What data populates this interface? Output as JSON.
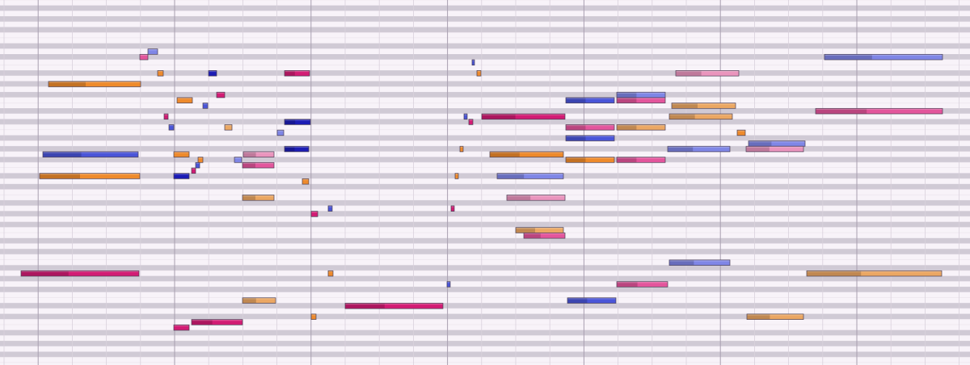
{
  "piano_roll": {
    "palette": [
      "#ee8a2c",
      "#e3559c",
      "#4a55d8",
      "#7f86e6",
      "#ea94bd",
      "#eba763",
      "#1c1cb4",
      "#d21c74"
    ],
    "notes": [
      [
        183,
        195,
        9,
        3
      ],
      [
        173,
        183,
        10,
        1
      ],
      [
        195,
        202,
        13,
        0
      ],
      [
        258,
        268,
        13,
        6
      ],
      [
        352,
        383,
        13,
        7
      ],
      [
        60,
        174,
        15,
        0
      ],
      [
        584,
        587,
        11,
        2
      ],
      [
        590,
        595,
        13,
        0
      ],
      [
        836,
        914,
        13,
        4
      ],
      [
        1020,
        1166,
        10,
        3
      ],
      [
        219,
        238,
        18,
        0
      ],
      [
        268,
        278,
        17,
        7
      ],
      [
        251,
        257,
        19,
        2
      ],
      [
        203,
        208,
        21,
        7
      ],
      [
        209,
        215,
        23,
        2
      ],
      [
        278,
        287,
        23,
        5
      ],
      [
        352,
        384,
        22,
        6
      ],
      [
        343,
        351,
        24,
        3
      ],
      [
        352,
        382,
        27,
        6
      ],
      [
        53,
        171,
        28,
        2
      ],
      [
        215,
        234,
        28,
        0
      ],
      [
        245,
        251,
        29,
        0
      ],
      [
        242,
        247,
        30,
        2
      ],
      [
        237,
        242,
        31,
        7
      ],
      [
        301,
        339,
        28,
        4
      ],
      [
        290,
        299,
        29,
        3
      ],
      [
        300,
        339,
        30,
        1
      ],
      [
        49,
        173,
        32,
        0
      ],
      [
        215,
        234,
        32,
        6
      ],
      [
        374,
        382,
        33,
        0
      ],
      [
        300,
        339,
        36,
        5
      ],
      [
        385,
        393,
        39,
        7
      ],
      [
        406,
        411,
        38,
        2
      ],
      [
        26,
        172,
        50,
        7
      ],
      [
        406,
        412,
        50,
        0
      ],
      [
        385,
        391,
        58,
        0
      ],
      [
        300,
        341,
        55,
        5
      ],
      [
        427,
        548,
        56,
        7
      ],
      [
        237,
        300,
        59,
        7
      ],
      [
        215,
        234,
        60,
        7
      ],
      [
        574,
        578,
        21,
        2
      ],
      [
        580,
        585,
        22,
        7
      ],
      [
        596,
        699,
        21,
        7
      ],
      [
        569,
        573,
        27,
        0
      ],
      [
        606,
        697,
        28,
        0
      ],
      [
        563,
        567,
        32,
        0
      ],
      [
        615,
        697,
        32,
        3
      ],
      [
        627,
        699,
        36,
        4
      ],
      [
        558,
        562,
        38,
        7
      ],
      [
        638,
        697,
        42,
        5
      ],
      [
        648,
        699,
        43,
        1
      ],
      [
        553,
        557,
        52,
        2
      ],
      [
        700,
        760,
        18,
        2
      ],
      [
        763,
        823,
        17,
        3
      ],
      [
        763,
        823,
        18,
        1
      ],
      [
        831,
        910,
        19,
        5
      ],
      [
        828,
        906,
        21,
        5
      ],
      [
        1009,
        1166,
        20,
        1
      ],
      [
        700,
        760,
        23,
        1
      ],
      [
        763,
        823,
        23,
        5
      ],
      [
        700,
        760,
        25,
        2
      ],
      [
        912,
        922,
        24,
        0
      ],
      [
        926,
        996,
        26,
        3
      ],
      [
        826,
        903,
        27,
        3
      ],
      [
        923,
        994,
        27,
        4
      ],
      [
        700,
        760,
        29,
        0
      ],
      [
        763,
        823,
        29,
        1
      ],
      [
        828,
        903,
        48,
        3
      ],
      [
        998,
        1165,
        50,
        5
      ],
      [
        763,
        826,
        52,
        1
      ],
      [
        702,
        762,
        55,
        2
      ],
      [
        924,
        994,
        58,
        5
      ]
    ]
  }
}
